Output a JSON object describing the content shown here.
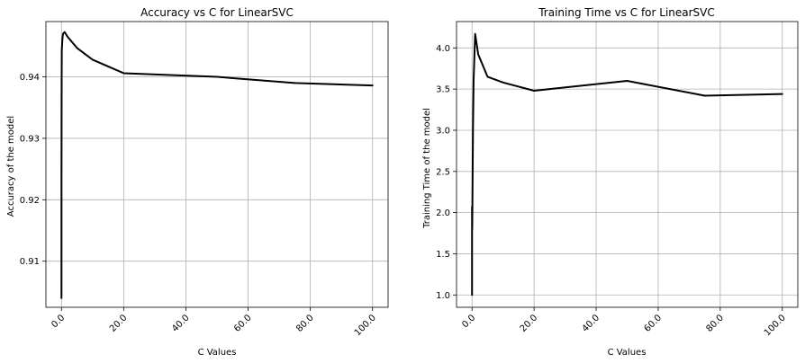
{
  "chart_data": [
    {
      "type": "line",
      "title": "Accuracy vs C for LinearSVC",
      "xlabel": "C Values",
      "ylabel": "Accuracy of the model",
      "xlim": [
        -5,
        105
      ],
      "ylim": [
        0.9025,
        0.949
      ],
      "xticks": [
        0,
        20,
        40,
        60,
        80,
        100
      ],
      "xtick_labels": [
        "0.0",
        "20.0",
        "40.0",
        "60.0",
        "80.0",
        "100.0"
      ],
      "xtick_rotation": 45,
      "yticks": [
        0.91,
        0.92,
        0.93,
        0.94
      ],
      "ytick_labels": [
        "0.91",
        "0.92",
        "0.93",
        "0.94"
      ],
      "grid": true,
      "series": [
        {
          "color": "#000000",
          "x": [
            0.001,
            0.01,
            0.05,
            0.1,
            0.3,
            0.5,
            1,
            2,
            5,
            10,
            20,
            50,
            75,
            100
          ],
          "y": [
            0.904,
            0.924,
            0.938,
            0.9443,
            0.9462,
            0.947,
            0.9473,
            0.9465,
            0.9447,
            0.9428,
            0.9406,
            0.94,
            0.939,
            0.9386
          ]
        }
      ]
    },
    {
      "type": "line",
      "title": "Training Time vs C for LinearSVC",
      "xlabel": "C Values",
      "ylabel": "Training Time of the model",
      "xlim": [
        -5,
        105
      ],
      "ylim": [
        0.85,
        4.32
      ],
      "xticks": [
        0,
        20,
        40,
        60,
        80,
        100
      ],
      "xtick_labels": [
        "0.0",
        "20.0",
        "40.0",
        "60.0",
        "80.0",
        "100.0"
      ],
      "xtick_rotation": 45,
      "yticks": [
        1.0,
        1.5,
        2.0,
        2.5,
        3.0,
        3.5,
        4.0
      ],
      "ytick_labels": [
        "1.0",
        "1.5",
        "2.0",
        "2.5",
        "3.0",
        "3.5",
        "4.0"
      ],
      "grid": true,
      "series": [
        {
          "color": "#000000",
          "x": [
            0.001,
            0.005,
            0.01,
            0.02,
            0.05,
            0.1,
            0.3,
            0.5,
            1,
            2,
            5,
            10,
            20,
            50,
            75,
            100
          ],
          "y": [
            1.0,
            2.07,
            1.78,
            2.05,
            1.8,
            2.0,
            3.0,
            3.6,
            4.17,
            3.92,
            3.65,
            3.58,
            3.48,
            3.6,
            3.42,
            3.44
          ]
        }
      ]
    }
  ]
}
